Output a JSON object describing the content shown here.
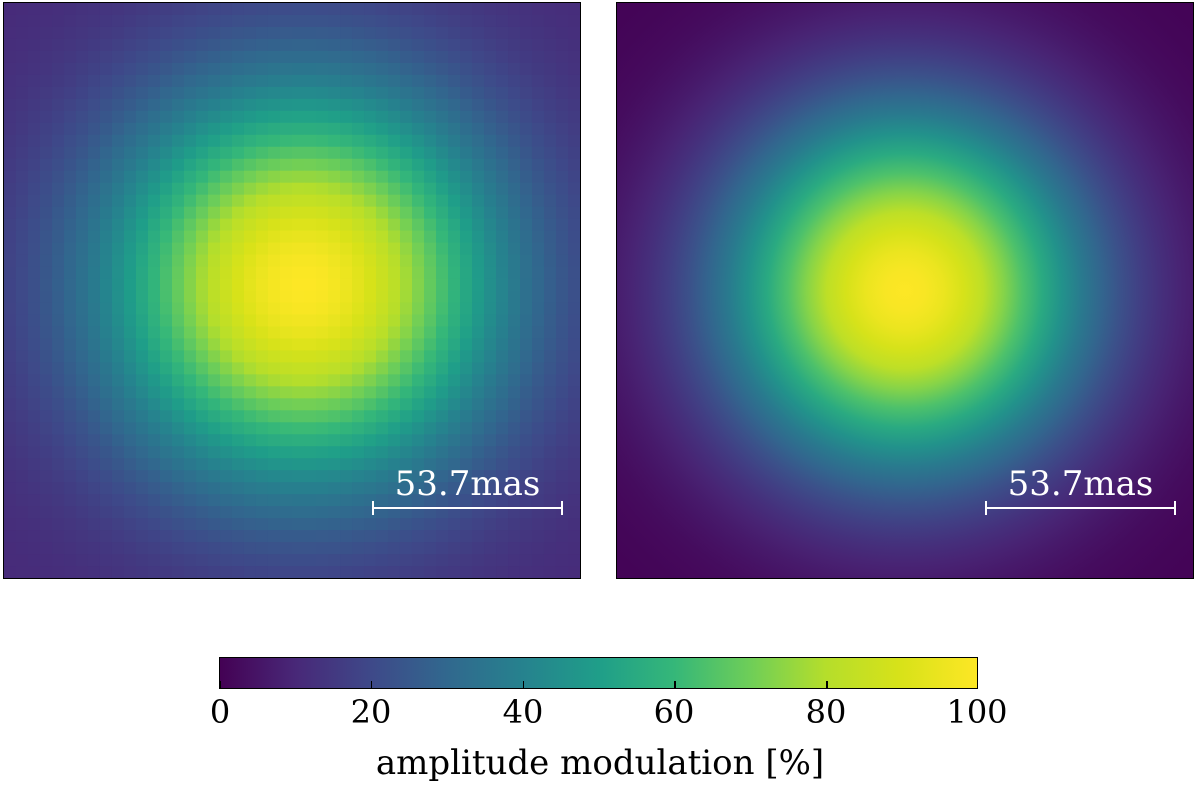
{
  "chart_data": [
    {
      "type": "heatmap",
      "panel": "left",
      "rendering": "pixelated",
      "peak": {
        "x_frac": 0.52,
        "y_frac": 0.49,
        "value": 100
      },
      "edge_value": 10,
      "scalebar": {
        "label": "53.7mas"
      },
      "colormap": "viridis"
    },
    {
      "type": "heatmap",
      "panel": "right",
      "rendering": "smooth",
      "peak": {
        "x_frac": 0.5,
        "y_frac": 0.5,
        "value": 100
      },
      "edge_value": 0,
      "scalebar": {
        "label": "53.7mas"
      },
      "colormap": "viridis"
    }
  ],
  "colorbar": {
    "range": [
      0,
      100
    ],
    "ticks": [
      "0",
      "20",
      "40",
      "60",
      "80",
      "100"
    ],
    "label": "amplitude modulation [%]"
  }
}
